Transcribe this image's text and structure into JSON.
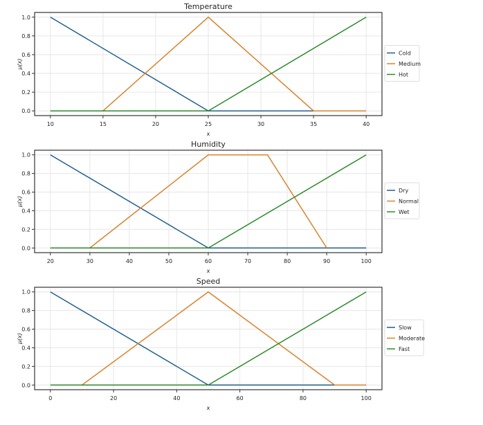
{
  "colors": {
    "blue": "#1f5f8f",
    "orange": "#d9822b",
    "green": "#2a8a2a"
  },
  "chart_data": [
    {
      "type": "line",
      "title": "Temperature",
      "xlabel": "x",
      "ylabel": "μ(x)",
      "xlim": [
        8.5,
        41.5
      ],
      "ylim": [
        -0.05,
        1.05
      ],
      "xticks": [
        10,
        15,
        20,
        25,
        30,
        35,
        40
      ],
      "yticks": [
        0.0,
        0.2,
        0.4,
        0.6,
        0.8,
        1.0
      ],
      "grid": true,
      "legend_position": "center-right-outside",
      "series": [
        {
          "name": "Cold",
          "color": "#1f5f8f",
          "x": [
            10,
            25,
            35
          ],
          "y": [
            1,
            0,
            0
          ]
        },
        {
          "name": "Medium",
          "color": "#d9822b",
          "x": [
            15,
            25,
            35,
            40
          ],
          "y": [
            0,
            1,
            0,
            0
          ]
        },
        {
          "name": "Hot",
          "color": "#2a8a2a",
          "x": [
            10,
            25,
            40
          ],
          "y": [
            0,
            0,
            1
          ]
        }
      ]
    },
    {
      "type": "line",
      "title": "Humidity",
      "xlabel": "x",
      "ylabel": "μ(x)",
      "xlim": [
        16,
        104
      ],
      "ylim": [
        -0.05,
        1.05
      ],
      "xticks": [
        20,
        30,
        40,
        50,
        60,
        70,
        80,
        90,
        100
      ],
      "yticks": [
        0.0,
        0.2,
        0.4,
        0.6,
        0.8,
        1.0
      ],
      "grid": true,
      "legend_position": "center-right-outside",
      "series": [
        {
          "name": "Dry",
          "color": "#1f5f8f",
          "x": [
            20,
            60,
            100
          ],
          "y": [
            1,
            0,
            0
          ]
        },
        {
          "name": "Normal",
          "color": "#d9822b",
          "x": [
            30,
            60,
            75,
            90
          ],
          "y": [
            0,
            1,
            1,
            0
          ]
        },
        {
          "name": "Wet",
          "color": "#2a8a2a",
          "x": [
            20,
            60,
            100
          ],
          "y": [
            0,
            0,
            1
          ]
        }
      ]
    },
    {
      "type": "line",
      "title": "Speed",
      "xlabel": "x",
      "ylabel": "μ(x)",
      "xlim": [
        -5,
        105
      ],
      "ylim": [
        -0.05,
        1.05
      ],
      "xticks": [
        0,
        20,
        40,
        60,
        80,
        100
      ],
      "yticks": [
        0.0,
        0.2,
        0.4,
        0.6,
        0.8,
        1.0
      ],
      "grid": true,
      "legend_position": "center-right-outside",
      "series": [
        {
          "name": "Slow",
          "color": "#1f5f8f",
          "x": [
            0,
            50,
            90
          ],
          "y": [
            1,
            0,
            0
          ]
        },
        {
          "name": "Moderate",
          "color": "#d9822b",
          "x": [
            10,
            50,
            90,
            100
          ],
          "y": [
            0,
            1,
            0,
            0
          ]
        },
        {
          "name": "Fast",
          "color": "#2a8a2a",
          "x": [
            0,
            50,
            100
          ],
          "y": [
            0,
            0,
            1
          ]
        }
      ]
    }
  ]
}
